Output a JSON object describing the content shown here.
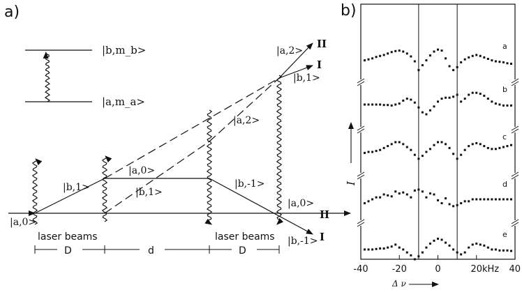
{
  "panel_a": {
    "label": "a)",
    "levels": {
      "upper": "|b,m_b>",
      "lower": "|a,m_a>"
    },
    "state_labels": [
      {
        "id": "a0_in",
        "text": "|a,0>"
      },
      {
        "id": "b1_left",
        "text": "|b,1>"
      },
      {
        "id": "a0_mid",
        "text": "|a,0>"
      },
      {
        "id": "b1_mid",
        "text": "|b,1>"
      },
      {
        "id": "bm1_mid",
        "text": "|b,-1>"
      },
      {
        "id": "a2_mid",
        "text": "|a,2>"
      },
      {
        "id": "a2_top",
        "text": "|a,2>"
      },
      {
        "id": "b1_right",
        "text": "|b,1>"
      },
      {
        "id": "a0_right",
        "text": "|a,0>"
      },
      {
        "id": "bm1_out",
        "text": "|b,-1>"
      }
    ],
    "port_labels": {
      "top_II": "II",
      "top_I": "I",
      "axis_II": "II",
      "axis_I": "I"
    },
    "laser_label_left": "laser beams",
    "laser_label_right": "laser beams",
    "distances": [
      "D",
      "d",
      "D"
    ]
  },
  "panel_b": {
    "label": "b)",
    "trace_letters": [
      "a",
      "b",
      "c",
      "d",
      "e"
    ],
    "y_axis_label": "I",
    "x_axis_label": "Δ ν",
    "x_unit": "kHz",
    "x_ticks": [
      "-40",
      "-20",
      "0",
      "20",
      "40"
    ]
  },
  "chart_data": {
    "type": "scatter",
    "xlabel": "Δ ν",
    "ylabel": "I",
    "xlim": [
      -40,
      40
    ],
    "xunit": "kHz",
    "vertical_markers": [
      -10,
      10
    ],
    "series": [
      {
        "name": "a",
        "x": [
          -38,
          -36,
          -34,
          -32,
          -30,
          -28,
          -26,
          -24,
          -22,
          -20,
          -18,
          -16,
          -14,
          -12,
          -10,
          -8,
          -6,
          -4,
          -2,
          0,
          2,
          4,
          6,
          8,
          10,
          12,
          14,
          16,
          18,
          20,
          22,
          24,
          26,
          28,
          30,
          32,
          34,
          36,
          38
        ],
        "y": [
          0.1,
          0.2,
          0.3,
          0.45,
          0.55,
          0.65,
          0.8,
          0.95,
          1.05,
          1.1,
          1.0,
          0.8,
          0.5,
          0.0,
          -0.9,
          -0.4,
          0.1,
          0.6,
          1.0,
          1.2,
          1.1,
          0.3,
          -0.5,
          -0.9,
          -0.6,
          -0.1,
          0.2,
          0.4,
          0.55,
          0.65,
          0.55,
          0.4,
          0.25,
          0.1,
          0.0,
          -0.05,
          -0.1,
          -0.2,
          -0.25
        ]
      },
      {
        "name": "b",
        "x": [
          -38,
          -36,
          -34,
          -32,
          -30,
          -28,
          -26,
          -24,
          -22,
          -20,
          -18,
          -16,
          -14,
          -12,
          -10,
          -8,
          -6,
          -4,
          -2,
          0,
          2,
          4,
          6,
          8,
          10,
          12,
          14,
          16,
          18,
          20,
          22,
          24,
          26,
          28,
          30,
          32,
          34,
          36,
          38
        ],
        "y": [
          0.0,
          0.0,
          0.0,
          0.0,
          0.0,
          -0.05,
          -0.05,
          -0.1,
          0.0,
          0.1,
          0.4,
          0.6,
          0.5,
          0.2,
          -0.3,
          -0.8,
          -1.0,
          -0.6,
          -0.2,
          0.3,
          0.6,
          0.7,
          0.7,
          0.8,
          1.0,
          0.3,
          0.6,
          1.0,
          1.2,
          1.2,
          1.1,
          0.9,
          0.6,
          0.3,
          0.1,
          0.0,
          -0.1,
          -0.1,
          -0.1
        ]
      },
      {
        "name": "c",
        "x": [
          -38,
          -36,
          -34,
          -32,
          -30,
          -28,
          -26,
          -24,
          -22,
          -20,
          -18,
          -16,
          -14,
          -12,
          -10,
          -8,
          -6,
          -4,
          -2,
          0,
          2,
          4,
          6,
          8,
          10,
          12,
          14,
          16,
          18,
          20,
          22,
          24,
          26,
          28,
          30,
          32,
          34,
          36,
          38
        ],
        "y": [
          -0.1,
          0.0,
          0.0,
          0.1,
          0.2,
          0.4,
          0.6,
          0.8,
          1.0,
          1.0,
          0.8,
          0.5,
          0.2,
          -0.3,
          -0.7,
          -0.4,
          0.0,
          0.3,
          0.7,
          1.0,
          1.0,
          0.8,
          0.4,
          -0.2,
          -0.7,
          -0.3,
          0.2,
          0.6,
          0.8,
          0.9,
          0.8,
          0.6,
          0.4,
          0.3,
          0.3,
          0.4,
          0.5,
          0.6,
          0.7
        ]
      },
      {
        "name": "d",
        "x": [
          -38,
          -36,
          -34,
          -32,
          -30,
          -28,
          -26,
          -24,
          -22,
          -20,
          -18,
          -16,
          -14,
          -12,
          -10,
          -8,
          -6,
          -4,
          -2,
          0,
          2,
          4,
          6,
          8,
          10,
          12,
          14,
          16,
          18,
          20,
          22,
          24,
          26,
          28,
          30,
          32,
          34,
          36,
          38
        ],
        "y": [
          -0.4,
          -0.2,
          0.0,
          0.2,
          0.2,
          0.5,
          0.4,
          0.3,
          0.8,
          0.6,
          0.7,
          0.5,
          0.2,
          0.9,
          1.0,
          0.8,
          0.2,
          0.6,
          0.5,
          -0.1,
          -0.4,
          0.1,
          -0.5,
          -0.7,
          -0.6,
          -0.4,
          -0.2,
          -0.2,
          0.0,
          0.0,
          0.0,
          0.0,
          0.0,
          0.0,
          0.0,
          0.0,
          0.0,
          0.0,
          0.0
        ]
      },
      {
        "name": "e",
        "x": [
          -38,
          -36,
          -34,
          -32,
          -30,
          -28,
          -26,
          -24,
          -22,
          -20,
          -18,
          -16,
          -14,
          -12,
          -10,
          -8,
          -6,
          -4,
          -2,
          0,
          2,
          4,
          6,
          8,
          10,
          12,
          14,
          16,
          18,
          20,
          22,
          24,
          26,
          28,
          30,
          32,
          34,
          36,
          38
        ],
        "y": [
          0.0,
          0.0,
          0.0,
          0.05,
          0.1,
          0.1,
          0.2,
          0.3,
          0.5,
          0.2,
          0.0,
          -0.3,
          -0.6,
          -1.0,
          -0.7,
          -0.3,
          0.2,
          0.6,
          0.9,
          1.1,
          1.0,
          0.7,
          0.4,
          0.0,
          -0.3,
          -0.5,
          -0.3,
          0.2,
          0.5,
          0.6,
          0.5,
          0.4,
          0.2,
          0.0,
          0.0,
          -0.1,
          -0.1,
          -0.1,
          -0.15
        ]
      }
    ]
  }
}
